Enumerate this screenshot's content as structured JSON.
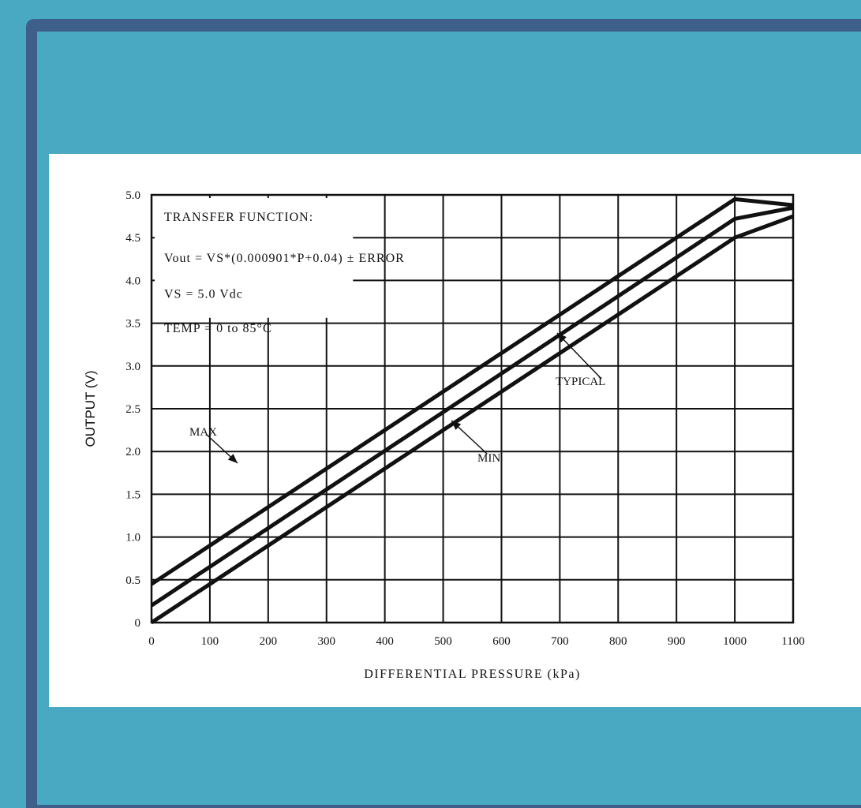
{
  "chart_data": {
    "type": "line",
    "xlabel": "DIFFERENTIAL PRESSURE (kPa)",
    "ylabel": "OUTPUT (V)",
    "xlim": [
      0,
      1100
    ],
    "ylim": [
      0,
      5.0
    ],
    "x_ticks": [
      "0",
      "100",
      "200",
      "300",
      "400",
      "500",
      "600",
      "700",
      "800",
      "900",
      "1000",
      "1100"
    ],
    "y_ticks": [
      "0",
      "0.5",
      "1.0",
      "1.5",
      "2.0",
      "2.5",
      "3.0",
      "3.5",
      "4.0",
      "4.5",
      "5.0"
    ],
    "grid": true,
    "annotation_lines": [
      "TRANSFER FUNCTION:",
      "Vout = VS*(0.000901*P+0.04) ± ERROR",
      "VS = 5.0 Vdc",
      "TEMP = 0 to 85°C"
    ],
    "series": [
      {
        "name": "MAX",
        "x": [
          0,
          1000,
          1100
        ],
        "y": [
          0.45,
          4.95,
          4.88
        ]
      },
      {
        "name": "TYPICAL",
        "x": [
          0,
          1000,
          1100
        ],
        "y": [
          0.2,
          4.72,
          4.85
        ]
      },
      {
        "name": "MIN",
        "x": [
          0,
          1000,
          1100
        ],
        "y": [
          0.0,
          4.5,
          4.75
        ]
      }
    ]
  }
}
